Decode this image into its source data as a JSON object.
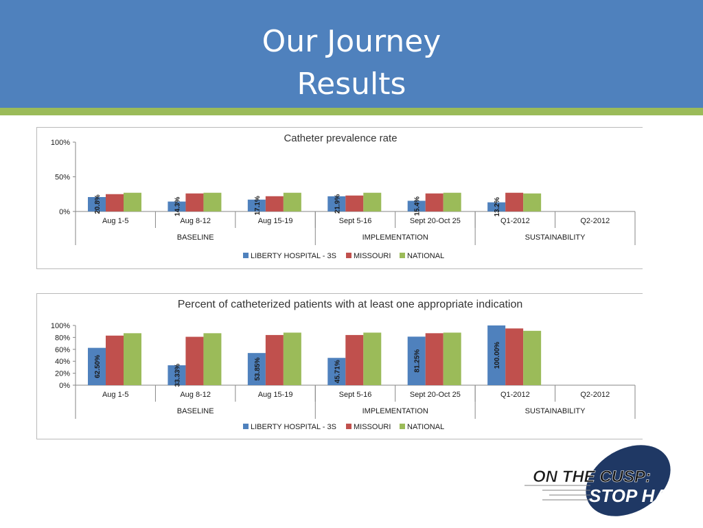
{
  "slide": {
    "title_line1": "Our Journey",
    "title_line2": "Results"
  },
  "colors": {
    "header_bg": "#4f81bd",
    "header_stripe": "#9bbb59",
    "liberty": "#4f81bd",
    "missouri": "#c0504d",
    "national": "#9bbb59"
  },
  "chart_data": [
    {
      "type": "bar",
      "title": "Catheter prevalence rate",
      "categories": [
        "Aug 1-5",
        "Aug 8-12",
        "Aug 15-19",
        "Sept 5-16",
        "Sept 20-Oct 25",
        "Q1-2012",
        "Q2-2012"
      ],
      "groups": [
        {
          "label": "BASELINE",
          "categories": [
            "Aug 1-5",
            "Aug 8-12",
            "Aug 15-19"
          ]
        },
        {
          "label": "IMPLEMENTATION",
          "categories": [
            "Sept 5-16",
            "Sept 20-Oct 25"
          ]
        },
        {
          "label": "SUSTAINABILITY",
          "categories": [
            "Q1-2012",
            "Q2-2012"
          ]
        }
      ],
      "y_ticks": [
        "0%",
        "50%",
        "100%"
      ],
      "ylim": [
        0,
        100
      ],
      "legend_position": "bottom",
      "series": [
        {
          "name": "LIBERTY HOSPITAL - 3S",
          "values": [
            20.8,
            14.3,
            17.1,
            21.9,
            15.4,
            13.2,
            null
          ],
          "labels": [
            "20.8%",
            "14.3%",
            "17.1%",
            "21.9%",
            "15.4%",
            "13.2%",
            ""
          ]
        },
        {
          "name": "MISSOURI",
          "values": [
            25,
            26,
            22,
            23,
            26,
            27,
            null
          ]
        },
        {
          "name": "NATIONAL",
          "values": [
            27,
            27,
            27,
            27,
            27,
            26,
            null
          ]
        }
      ]
    },
    {
      "type": "bar",
      "title": "Percent of catheterized patients with at least one appropriate indication",
      "categories": [
        "Aug 1-5",
        "Aug 8-12",
        "Aug 15-19",
        "Sept 5-16",
        "Sept 20-Oct 25",
        "Q1-2012",
        "Q2-2012"
      ],
      "groups": [
        {
          "label": "BASELINE",
          "categories": [
            "Aug 1-5",
            "Aug 8-12",
            "Aug 15-19"
          ]
        },
        {
          "label": "IMPLEMENTATION",
          "categories": [
            "Sept 5-16",
            "Sept 20-Oct 25"
          ]
        },
        {
          "label": "SUSTAINABILITY",
          "categories": [
            "Q1-2012",
            "Q2-2012"
          ]
        }
      ],
      "y_ticks": [
        "0%",
        "20%",
        "40%",
        "60%",
        "80%",
        "100%"
      ],
      "ylim": [
        0,
        100
      ],
      "legend_position": "bottom",
      "series": [
        {
          "name": "LIBERTY HOSPITAL - 3S",
          "values": [
            62.5,
            33.33,
            53.85,
            45.71,
            81.25,
            100.0,
            null
          ],
          "labels": [
            "62.50%",
            "33.33%",
            "53.85%",
            "45.71%",
            "81.25%",
            "100.00%",
            ""
          ]
        },
        {
          "name": "MISSOURI",
          "values": [
            83,
            81,
            84,
            84,
            87,
            95,
            null
          ]
        },
        {
          "name": "NATIONAL",
          "values": [
            87,
            87,
            88,
            88,
            88,
            91,
            null
          ]
        }
      ]
    }
  ],
  "logo": {
    "line1": "ON THE CUSP:",
    "line2": "STOP HAI"
  }
}
